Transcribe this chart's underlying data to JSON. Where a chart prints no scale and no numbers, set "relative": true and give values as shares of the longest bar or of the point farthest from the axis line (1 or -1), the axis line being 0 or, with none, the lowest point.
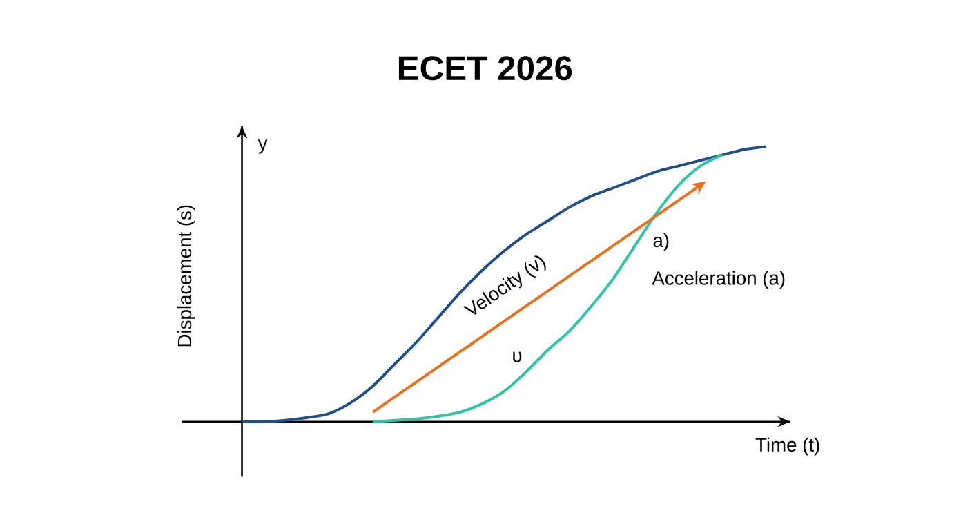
{
  "chart_data": {
    "type": "line",
    "title": "ECET 2026",
    "xlabel": "Time (t)",
    "ylabel": "Displacement (s)",
    "relative": true,
    "categories": [
      null,
      null,
      null,
      null,
      null,
      null,
      null,
      null,
      null,
      null,
      null,
      null,
      null,
      null,
      null,
      null,
      null,
      null,
      null,
      null,
      null,
      null,
      null,
      null,
      null
    ],
    "series": [
      {
        "color": "#1f4e8c",
        "values": [
          0,
          0,
          0.005,
          0.015,
          0.03,
          0.07,
          0.13,
          0.21,
          0.29,
          0.38,
          0.47,
          0.55,
          0.62,
          0.68,
          0.73,
          0.78,
          0.82,
          0.85,
          0.88,
          0.91,
          0.93,
          0.95,
          0.97,
          0.99,
          1.0
        ]
      },
      {
        "color": "#2ec4a6",
        "values": [
          null,
          null,
          null,
          null,
          null,
          null,
          0,
          0.005,
          0.01,
          0.02,
          0.035,
          0.065,
          0.11,
          0.18,
          0.26,
          0.33,
          0.42,
          0.52,
          0.64,
          0.76,
          0.86,
          0.93,
          0.97,
          null,
          null
        ]
      },
      {
        "color": "#e8701e",
        "values": [
          null,
          null,
          null,
          null,
          null,
          null,
          0.035,
          0.09,
          0.145,
          0.2,
          0.255,
          0.31,
          0.365,
          0.42,
          0.475,
          0.53,
          0.585,
          0.64,
          0.695,
          0.75,
          0.805,
          0.86,
          null,
          null,
          null
        ]
      }
    ],
    "annotations": [
      "y",
      "Velocity (v)",
      "Acceleration (a)",
      "a)",
      "υ"
    ],
    "marker": "none",
    "line_style": "solid"
  }
}
